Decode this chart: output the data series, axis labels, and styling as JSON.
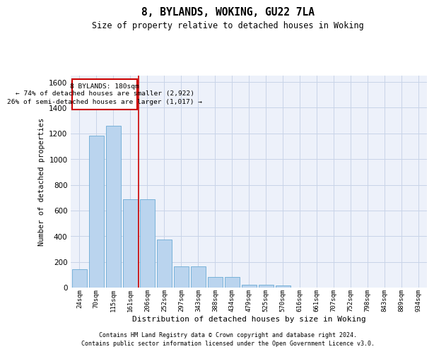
{
  "title": "8, BYLANDS, WOKING, GU22 7LA",
  "subtitle": "Size of property relative to detached houses in Woking",
  "xlabel": "Distribution of detached houses by size in Woking",
  "ylabel": "Number of detached properties",
  "footer_line1": "Contains HM Land Registry data © Crown copyright and database right 2024.",
  "footer_line2": "Contains public sector information licensed under the Open Government Licence v3.0.",
  "categories": [
    "24sqm",
    "70sqm",
    "115sqm",
    "161sqm",
    "206sqm",
    "252sqm",
    "297sqm",
    "343sqm",
    "388sqm",
    "434sqm",
    "479sqm",
    "525sqm",
    "570sqm",
    "616sqm",
    "661sqm",
    "707sqm",
    "752sqm",
    "798sqm",
    "843sqm",
    "889sqm",
    "934sqm"
  ],
  "values": [
    145,
    1180,
    1260,
    690,
    690,
    375,
    165,
    165,
    80,
    80,
    22,
    22,
    15,
    0,
    0,
    0,
    0,
    0,
    0,
    0,
    0
  ],
  "bar_color": "#bad4ee",
  "bar_edge_color": "#6aaad4",
  "grid_color": "#c8d4e8",
  "bg_color": "#edf1fa",
  "annotation_box_color": "#cc0000",
  "vline_color": "#cc0000",
  "vline_position": 3.5,
  "annotation_text_line1": "8 BYLANDS: 180sqm",
  "annotation_text_line2": "← 74% of detached houses are smaller (2,922)",
  "annotation_text_line3": "26% of semi-detached houses are larger (1,017) →",
  "ylim": [
    0,
    1650
  ],
  "yticks": [
    0,
    200,
    400,
    600,
    800,
    1000,
    1200,
    1400,
    1600
  ]
}
